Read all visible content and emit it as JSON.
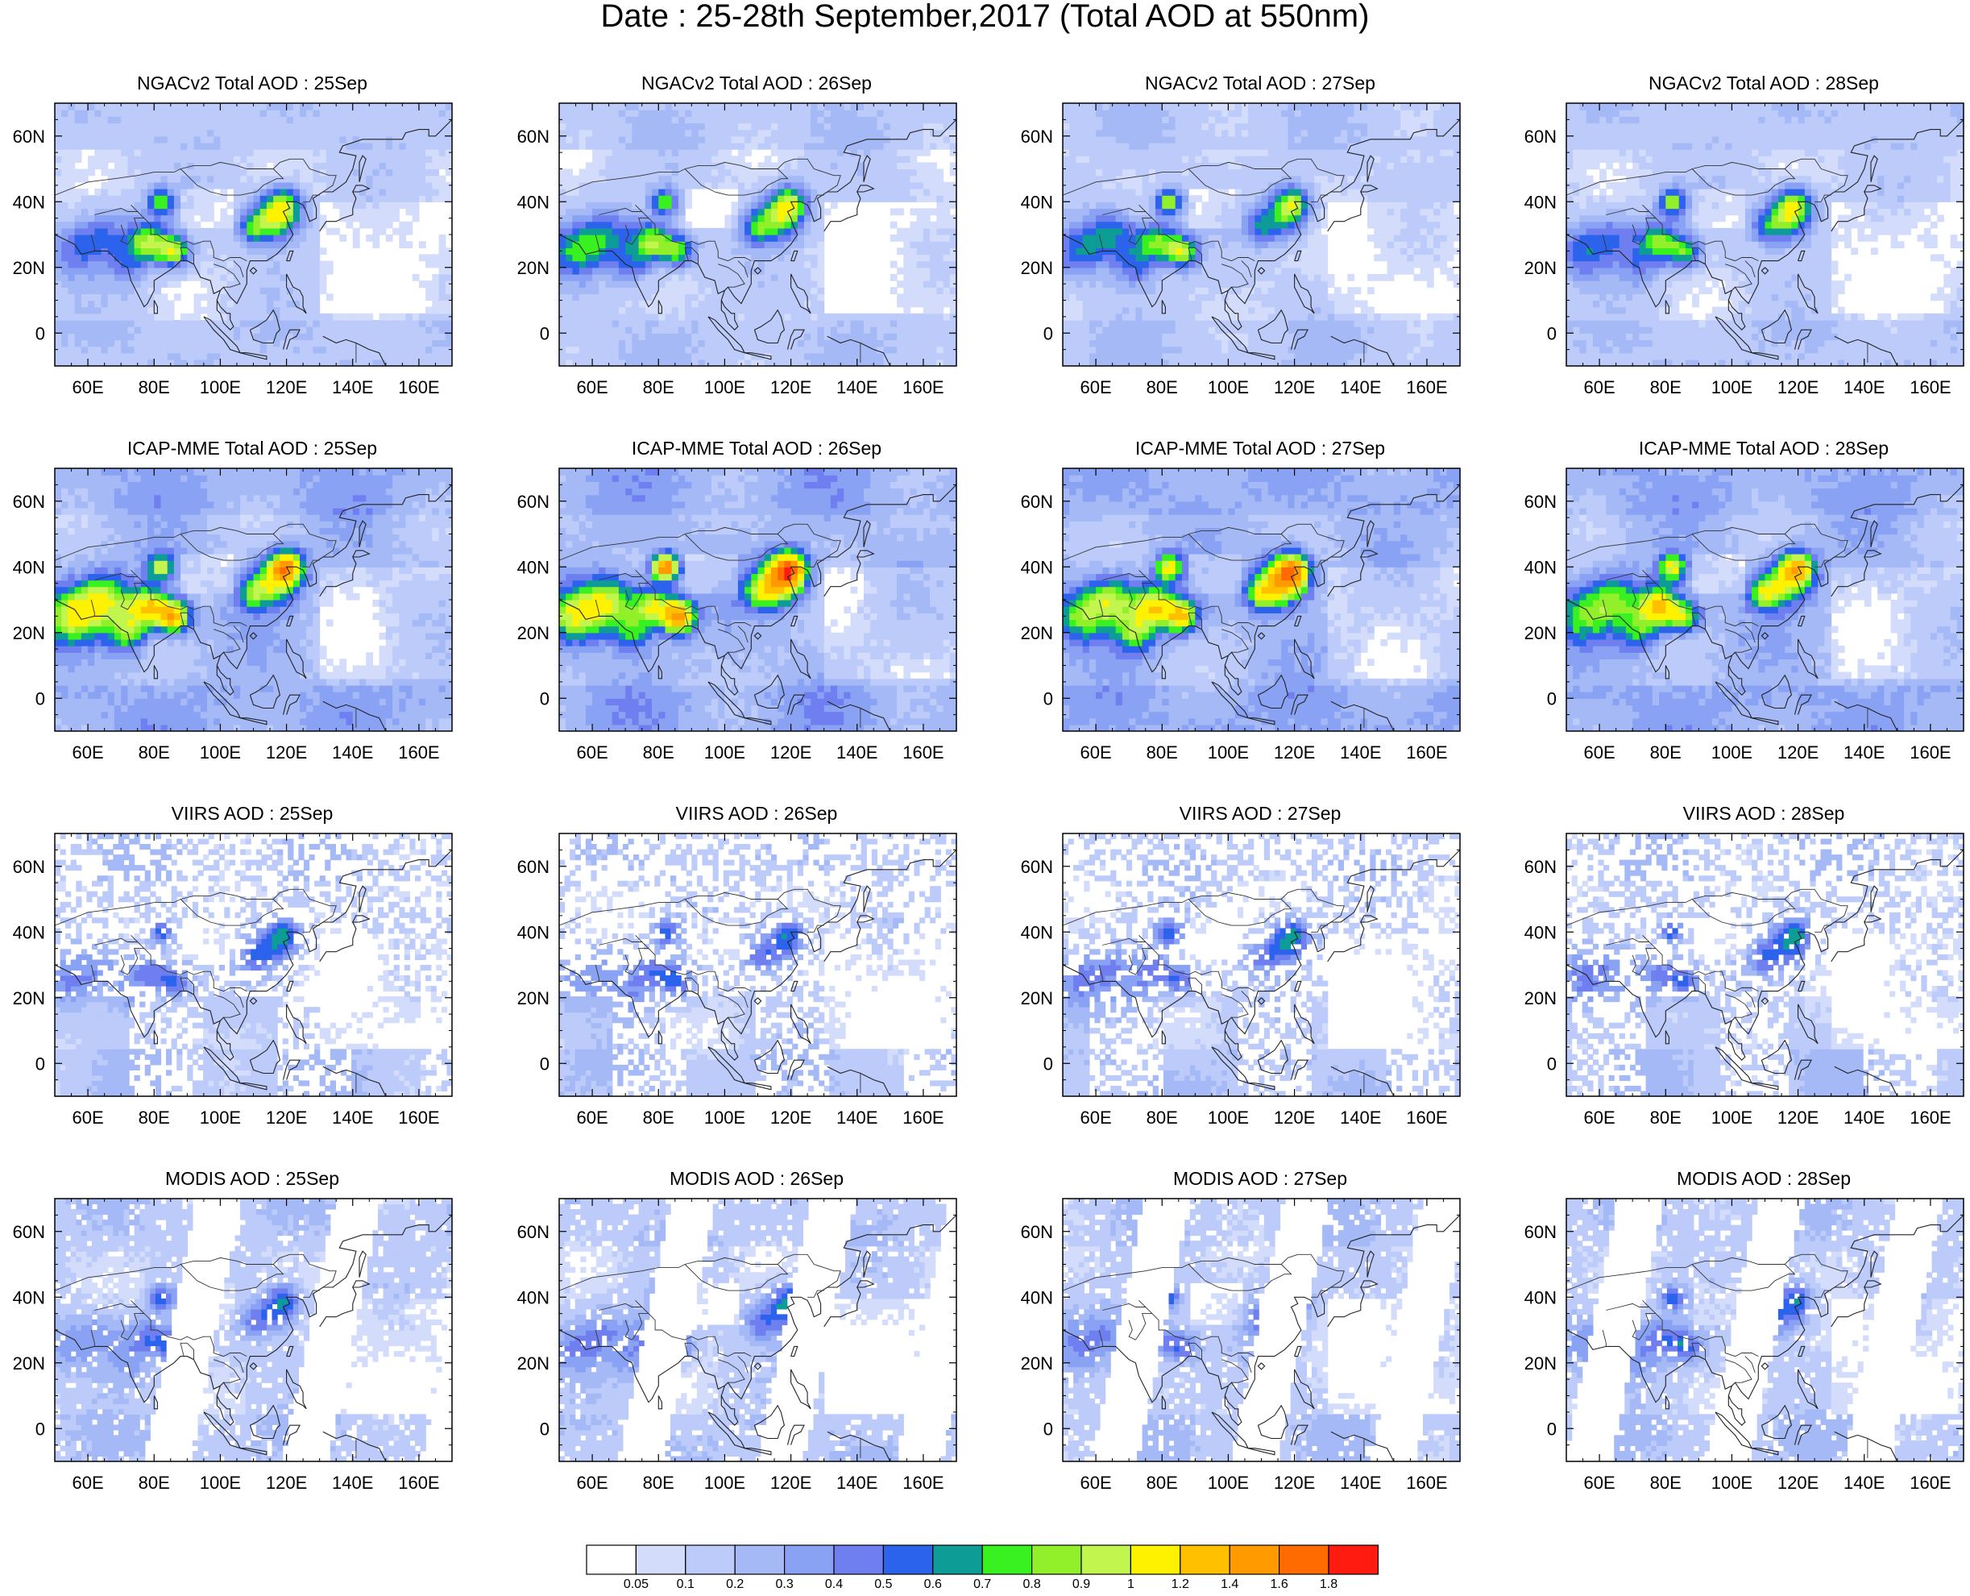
{
  "title": "Date : 25-28th September,2017 (Total AOD at 550nm)",
  "lat_ticks": [
    "60N",
    "40N",
    "20N",
    "0"
  ],
  "lon_ticks": [
    "60E",
    "80E",
    "100E",
    "120E",
    "140E",
    "160E"
  ],
  "extent": {
    "lon_min": 50,
    "lon_max": 170,
    "lat_min": -10,
    "lat_max": 70
  },
  "rows": [
    {
      "id": "ngac",
      "style": "smooth",
      "titles": [
        "NGACv2 Total AOD : 25Sep",
        "NGACv2 Total AOD : 26Sep",
        "NGACv2 Total AOD : 27Sep",
        "NGACv2 Total AOD : 28Sep"
      ]
    },
    {
      "id": "icap",
      "style": "smooth",
      "titles": [
        "ICAP-MME Total AOD : 25Sep",
        "ICAP-MME Total AOD : 26Sep",
        "ICAP-MME Total AOD : 27Sep",
        "ICAP-MME Total AOD : 28Sep"
      ]
    },
    {
      "id": "viirs",
      "style": "sparse",
      "titles": [
        "VIIRS AOD : 25Sep",
        "VIIRS AOD : 26Sep",
        "VIIRS AOD : 27Sep",
        "VIIRS AOD : 28Sep"
      ]
    },
    {
      "id": "modis",
      "style": "swath",
      "titles": [
        "MODIS AOD : 25Sep",
        "MODIS AOD : 26Sep",
        "MODIS AOD : 27Sep",
        "MODIS AOD : 28Sep"
      ]
    }
  ],
  "colorbar": {
    "labels": [
      "0.05",
      "0.1",
      "0.2",
      "0.3",
      "0.4",
      "0.5",
      "0.6",
      "0.7",
      "0.8",
      "0.9",
      "1",
      "1.2",
      "1.4",
      "1.6",
      "1.8"
    ],
    "colors": [
      "#ffffff",
      "#d3ddfb",
      "#bccbf9",
      "#a4b9f6",
      "#8aa2f3",
      "#6f7ff0",
      "#2c63ec",
      "#0d9c96",
      "#39f021",
      "#92f02b",
      "#c2f54e",
      "#fff200",
      "#ffc000",
      "#ff9a00",
      "#ff6b00",
      "#ff1b10"
    ]
  }
}
